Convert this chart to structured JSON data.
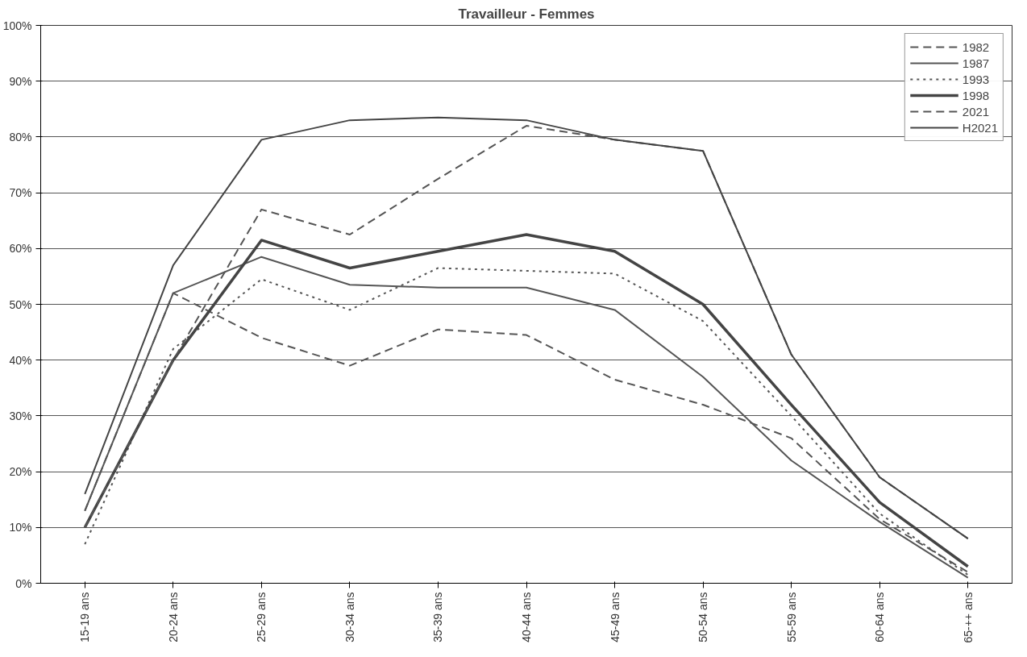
{
  "chart_data": {
    "type": "line",
    "title": "Travailleur - Femmes",
    "categories": [
      "15-19 ans",
      "20-24 ans",
      "25-29 ans",
      "30-34 ans",
      "35-39 ans",
      "40-44 ans",
      "45-49 ans",
      "50-54 ans",
      "55-59 ans",
      "60-64 ans",
      "65-++ ans"
    ],
    "series": [
      {
        "name": "1982",
        "color": "#555555",
        "line_style": "dashed",
        "values": [
          13,
          52,
          44,
          39,
          45.5,
          44.5,
          36.5,
          32,
          26,
          11.5,
          2
        ]
      },
      {
        "name": "1987",
        "color": "#555555",
        "line_style": "solid",
        "values": [
          13,
          52,
          58.5,
          53.5,
          53,
          53,
          49,
          37,
          22,
          11,
          1
        ]
      },
      {
        "name": "1993",
        "color": "#555555",
        "line_style": "dotted",
        "values": [
          7,
          42,
          54.5,
          49,
          56.5,
          56,
          55.5,
          47,
          30,
          12.5,
          1.5
        ]
      },
      {
        "name": "1998",
        "color": "#444444",
        "line_style": "solid",
        "values": [
          10,
          40,
          61.5,
          56.5,
          59.5,
          62.5,
          59.5,
          50,
          32,
          14.5,
          3
        ]
      },
      {
        "name": "2021",
        "color": "#555555",
        "line_style": "dashed",
        "values": [
          10,
          40,
          67,
          62.5,
          72.5,
          82,
          79.5,
          77.5,
          41,
          19,
          8
        ]
      },
      {
        "name": "H2021",
        "color": "#444444",
        "line_style": "solid",
        "values": [
          16,
          57,
          79.5,
          83,
          83.5,
          83,
          79.5,
          77.5,
          41,
          19,
          8
        ]
      }
    ],
    "ylim": [
      0,
      100
    ],
    "yticks": [
      {
        "value": 0,
        "label": "0%"
      },
      {
        "value": 10,
        "label": "10%"
      },
      {
        "value": 20,
        "label": "20%"
      },
      {
        "value": 30,
        "label": "30%"
      },
      {
        "value": 40,
        "label": "40%"
      },
      {
        "value": 50,
        "label": "50%"
      },
      {
        "value": 60,
        "label": "60%"
      },
      {
        "value": 70,
        "label": "70%"
      },
      {
        "value": 80,
        "label": "80%"
      },
      {
        "value": 90,
        "label": "90%"
      },
      {
        "value": 100,
        "label": "100%"
      }
    ],
    "grid": "y",
    "legend": "top right",
    "marker": "none"
  }
}
